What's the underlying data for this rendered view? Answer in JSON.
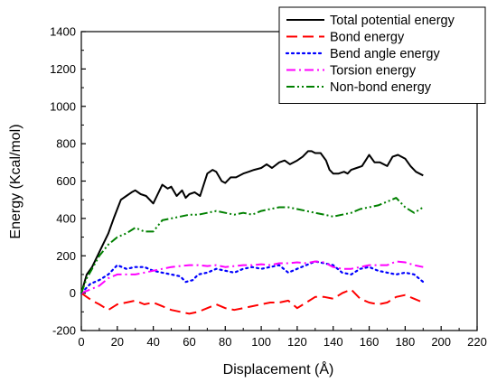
{
  "chart_data": {
    "type": "line",
    "title": "",
    "xlabel": "Displacement (Å)",
    "ylabel": "Energy (Kcal/mol)",
    "xlim": [
      0,
      220
    ],
    "ylim": [
      -200,
      1400
    ],
    "x_ticks": [
      "0",
      "20",
      "40",
      "60",
      "80",
      "100",
      "120",
      "140",
      "160",
      "180",
      "200",
      "220"
    ],
    "y_ticks": [
      "-200",
      "0",
      "200",
      "400",
      "600",
      "800",
      "1000",
      "1200",
      "1400"
    ],
    "grid": false,
    "legend_position": "top-right",
    "series": [
      {
        "name": "Total potential energy",
        "color": "#000000",
        "dash": "solid",
        "x": [
          0,
          3,
          6,
          9,
          12,
          15,
          18,
          20,
          22,
          25,
          28,
          30,
          33,
          36,
          40,
          42,
          45,
          48,
          50,
          53,
          56,
          58,
          60,
          63,
          66,
          70,
          73,
          75,
          78,
          80,
          83,
          86,
          90,
          93,
          96,
          100,
          103,
          106,
          110,
          113,
          116,
          120,
          123,
          126,
          128,
          130,
          133,
          136,
          138,
          140,
          143,
          146,
          148,
          150,
          153,
          156,
          158,
          160,
          163,
          166,
          170,
          173,
          176,
          178,
          180,
          183,
          186,
          190
        ],
        "y": [
          0,
          100,
          140,
          200,
          260,
          320,
          400,
          450,
          500,
          520,
          540,
          550,
          530,
          520,
          480,
          520,
          580,
          560,
          570,
          520,
          550,
          510,
          530,
          540,
          520,
          640,
          660,
          650,
          600,
          590,
          620,
          620,
          640,
          650,
          660,
          670,
          690,
          670,
          700,
          710,
          690,
          710,
          730,
          760,
          760,
          750,
          750,
          710,
          660,
          640,
          640,
          650,
          640,
          660,
          670,
          680,
          710,
          740,
          700,
          700,
          680,
          730,
          740,
          730,
          720,
          680,
          650,
          630
        ]
      },
      {
        "name": "Bond energy",
        "color": "#ff0000",
        "dash": "long-dash",
        "x": [
          0,
          3,
          6,
          10,
          15,
          20,
          25,
          30,
          35,
          40,
          45,
          50,
          55,
          60,
          65,
          70,
          75,
          80,
          85,
          90,
          95,
          100,
          105,
          110,
          115,
          120,
          125,
          130,
          135,
          140,
          145,
          150,
          155,
          160,
          165,
          170,
          175,
          180,
          185,
          190
        ],
        "y": [
          0,
          -20,
          -40,
          -60,
          -90,
          -60,
          -50,
          -40,
          -60,
          -50,
          -70,
          -90,
          -100,
          -110,
          -100,
          -80,
          -60,
          -80,
          -90,
          -80,
          -70,
          -60,
          -50,
          -50,
          -40,
          -80,
          -50,
          -20,
          -20,
          -30,
          0,
          20,
          -30,
          -50,
          -60,
          -50,
          -20,
          -10,
          -30,
          -50
        ]
      },
      {
        "name": "Bend angle energy",
        "color": "#0000ff",
        "dash": "dot",
        "x": [
          0,
          5,
          10,
          15,
          20,
          25,
          30,
          35,
          40,
          45,
          50,
          55,
          58,
          62,
          65,
          70,
          75,
          80,
          85,
          90,
          95,
          100,
          105,
          110,
          115,
          120,
          125,
          130,
          135,
          140,
          145,
          150,
          155,
          160,
          165,
          170,
          175,
          180,
          185,
          190
        ],
        "y": [
          0,
          50,
          70,
          100,
          150,
          130,
          140,
          140,
          120,
          110,
          100,
          90,
          60,
          70,
          100,
          110,
          130,
          120,
          110,
          130,
          140,
          130,
          140,
          150,
          110,
          130,
          150,
          170,
          160,
          150,
          110,
          100,
          130,
          140,
          120,
          110,
          100,
          110,
          100,
          60
        ]
      },
      {
        "name": "Torsion energy",
        "color": "#ff00ff",
        "dash": "dash-dot",
        "x": [
          0,
          5,
          10,
          15,
          20,
          25,
          30,
          35,
          40,
          45,
          50,
          55,
          60,
          65,
          70,
          75,
          80,
          85,
          90,
          95,
          100,
          105,
          110,
          115,
          120,
          125,
          130,
          135,
          140,
          145,
          150,
          155,
          160,
          165,
          170,
          175,
          180,
          185,
          190
        ],
        "y": [
          0,
          20,
          40,
          80,
          100,
          100,
          100,
          110,
          120,
          130,
          140,
          145,
          150,
          150,
          145,
          150,
          140,
          145,
          150,
          150,
          155,
          150,
          160,
          160,
          165,
          160,
          170,
          165,
          140,
          130,
          130,
          140,
          150,
          150,
          150,
          170,
          165,
          150,
          140
        ]
      },
      {
        "name": "Non-bond energy",
        "color": "#008000",
        "dash": "dash-dot-dot",
        "x": [
          0,
          3,
          6,
          10,
          15,
          20,
          25,
          30,
          35,
          40,
          45,
          50,
          55,
          60,
          65,
          70,
          75,
          80,
          85,
          90,
          95,
          100,
          105,
          110,
          115,
          120,
          125,
          130,
          135,
          140,
          145,
          150,
          155,
          160,
          165,
          170,
          175,
          180,
          185,
          190
        ],
        "y": [
          0,
          80,
          130,
          200,
          260,
          300,
          320,
          350,
          330,
          330,
          390,
          400,
          410,
          420,
          420,
          430,
          440,
          430,
          420,
          430,
          420,
          440,
          450,
          460,
          460,
          450,
          440,
          430,
          420,
          410,
          420,
          430,
          450,
          460,
          470,
          490,
          510,
          460,
          430,
          460
        ]
      }
    ]
  }
}
